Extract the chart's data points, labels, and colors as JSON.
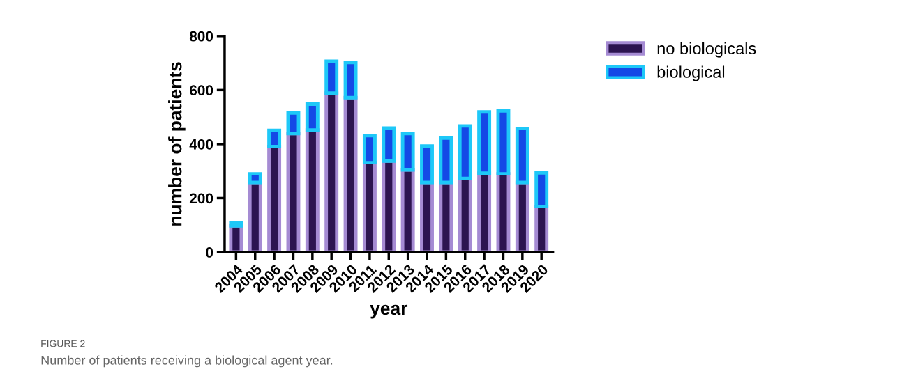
{
  "chart_data": {
    "type": "bar",
    "stacked": true,
    "xlabel": "year",
    "ylabel": "number of patients",
    "categories": [
      "2004",
      "2005",
      "2006",
      "2007",
      "2008",
      "2009",
      "2010",
      "2011",
      "2012",
      "2013",
      "2014",
      "2015",
      "2016",
      "2017",
      "2018",
      "2019",
      "2020"
    ],
    "series": [
      {
        "name": "no biologicals",
        "color": "#2c1450",
        "values": [
          97,
          258,
          391,
          439,
          452,
          589,
          572,
          331,
          337,
          304,
          258,
          258,
          273,
          292,
          290,
          258,
          169
        ]
      },
      {
        "name": "biological",
        "color": "#1449e6",
        "values": [
          12,
          32,
          60,
          76,
          96,
          118,
          130,
          100,
          122,
          135,
          135,
          164,
          194,
          227,
          233,
          200,
          124
        ]
      }
    ],
    "ylim": [
      0,
      800
    ],
    "yticks": [
      0,
      200,
      400,
      600,
      800
    ],
    "grid": false,
    "legend": "top right",
    "annotations": [
      "FIGURE 2",
      "Number of patients receiving a biological agent year."
    ]
  }
}
